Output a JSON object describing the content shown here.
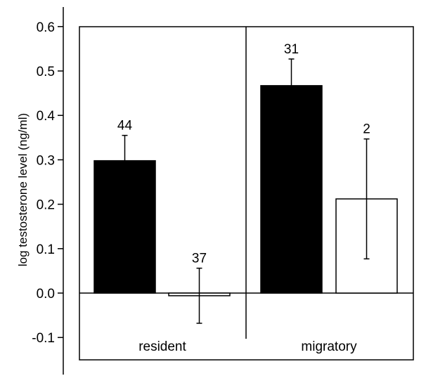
{
  "chart_data": {
    "type": "bar",
    "ylabel": "log testosterone level (ng/ml)",
    "xlabel": "",
    "ylim": [
      -0.15,
      0.63
    ],
    "yticks": [
      "0.6",
      "0.5",
      "0.4",
      "0.3",
      "0.2",
      "0.1",
      "0.0",
      "-0.1"
    ],
    "ytick_values": [
      0.6,
      0.5,
      0.4,
      0.3,
      0.2,
      0.1,
      0.0,
      -0.1
    ],
    "grid": false,
    "categories": [
      "resident",
      "migratory"
    ],
    "bars": [
      {
        "group": "resident",
        "fill": "filled",
        "value": 0.298,
        "error": 0.057,
        "n": "44"
      },
      {
        "group": "resident",
        "fill": "open",
        "value": -0.006,
        "error": 0.062,
        "n": "37"
      },
      {
        "group": "migratory",
        "fill": "filled",
        "value": 0.467,
        "error": 0.06,
        "n": "31"
      },
      {
        "group": "migratory",
        "fill": "open",
        "value": 0.212,
        "error": 0.135,
        "n": "2"
      }
    ],
    "colors": {
      "filled": "#000000",
      "open": "#ffffff",
      "stroke": "#000000"
    }
  }
}
